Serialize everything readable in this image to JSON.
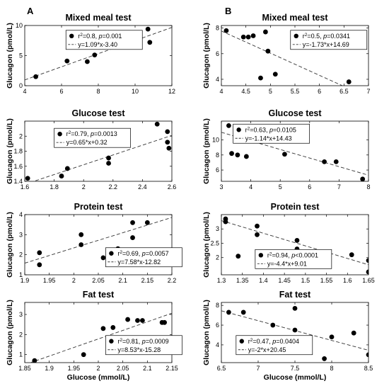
{
  "panel_labels": [
    "A",
    "B"
  ],
  "chart_data": [
    {
      "type": "scatter",
      "panel": "A",
      "title": "Mixed meal test",
      "xlabel": "",
      "ylabel": "Glucagon (pmol/L)",
      "xlim": [
        4,
        12
      ],
      "ylim": [
        0,
        10
      ],
      "xticks": [
        "4",
        "6",
        "8",
        "10",
        "12"
      ],
      "xtick_values": [
        4,
        6,
        8,
        10,
        12
      ],
      "yticks": [
        "0",
        "5",
        "10"
      ],
      "ytick_values": [
        0,
        5,
        10
      ],
      "points": {
        "x": [
          4.6,
          6.3,
          7.4,
          7.8,
          8.8,
          9.2,
          9.9,
          10.7,
          10.8
        ],
        "y": [
          1.5,
          4.1,
          4.0,
          5.1,
          8.8,
          7.4,
          7.6,
          9.4,
          7.2
        ]
      },
      "fit": {
        "slope": 1.09,
        "intercept": -3.4
      },
      "legend": {
        "stat": "r²=0.8, p=0.001",
        "r2": "0.8",
        "p": "0.001",
        "eq": "y=1.09*x-3.40"
      }
    },
    {
      "type": "scatter",
      "panel": "B",
      "title": "Mixed meal test",
      "xlabel": "",
      "ylabel": "Glucagon (pmol/L)",
      "xlim": [
        4,
        7
      ],
      "ylim": [
        3.5,
        8.2
      ],
      "xticks": [
        "4",
        "4.5",
        "5",
        "5.5",
        "6",
        "6.5",
        "7"
      ],
      "xtick_values": [
        4,
        4.5,
        5,
        5.5,
        6,
        6.5,
        7
      ],
      "yticks": [
        "4",
        "6",
        "8"
      ],
      "ytick_values": [
        4,
        6,
        8
      ],
      "points": {
        "x": [
          4.1,
          4.45,
          4.55,
          4.65,
          4.8,
          4.9,
          4.95,
          5.1,
          6.6
        ],
        "y": [
          7.8,
          7.3,
          7.3,
          7.4,
          4.1,
          7.7,
          6.2,
          4.4,
          3.8
        ]
      },
      "fit": {
        "slope": -1.73,
        "intercept": 14.69
      },
      "legend": {
        "stat": "r²=0.5, p=0.0341",
        "r2": "0.5",
        "p": "0.0341",
        "eq": "y=-1.73*x+14.69"
      }
    },
    {
      "type": "scatter",
      "panel": "A",
      "title": "Glucose test",
      "xlabel": "",
      "ylabel": "Glucagon (pmol/L)",
      "xlim": [
        1.6,
        2.6
      ],
      "ylim": [
        1.4,
        2.2
      ],
      "xticks": [
        "1.6",
        "1.8",
        "2",
        "2.2",
        "2.4",
        "2.6"
      ],
      "xtick_values": [
        1.6,
        1.8,
        2.0,
        2.2,
        2.4,
        2.6
      ],
      "yticks": [
        "1.4",
        "1.6",
        "1.8",
        "2"
      ],
      "ytick_values": [
        1.4,
        1.6,
        1.8,
        2.0
      ],
      "points": {
        "x": [
          1.62,
          1.85,
          1.89,
          2.17,
          2.17,
          2.5,
          2.57,
          2.57,
          2.58
        ],
        "y": [
          1.44,
          1.47,
          1.57,
          1.64,
          1.71,
          2.16,
          2.06,
          1.92,
          1.84
        ]
      },
      "fit": {
        "slope": 0.65,
        "intercept": 0.32
      },
      "legend": {
        "stat": "r²=0.79, p=0.0013",
        "r2": "0.79",
        "p": "0.0013",
        "eq": "y=0.65*x+0.32"
      }
    },
    {
      "type": "scatter",
      "panel": "B",
      "title": "Glucose test",
      "xlabel": "",
      "ylabel": "Glucagon (pmol/L)",
      "xlim": [
        3,
        8
      ],
      "ylim": [
        4.5,
        12.5
      ],
      "xticks": [
        "3",
        "4",
        "5",
        "6",
        "7",
        "8"
      ],
      "xtick_values": [
        3,
        4,
        5,
        6,
        7,
        8
      ],
      "yticks": [
        "6",
        "8",
        "10"
      ],
      "ytick_values": [
        6,
        8,
        10
      ],
      "points": {
        "x": [
          3.25,
          3.35,
          3.55,
          3.85,
          4.3,
          4.75,
          5.15,
          6.5,
          6.9,
          7.8
        ],
        "y": [
          11.9,
          8.2,
          8.0,
          7.8,
          11.1,
          10.7,
          8.1,
          7.1,
          7.1,
          4.8
        ]
      },
      "fit": {
        "slope": -1.14,
        "intercept": 14.43
      },
      "legend": {
        "stat": "r²=0.63, p=0.0105",
        "r2": "0.63",
        "p": "0.0105",
        "eq": "y=-1.14*x+14.43"
      }
    },
    {
      "type": "scatter",
      "panel": "A",
      "title": "Protein test",
      "xlabel": "",
      "ylabel": "Glucagon (pmol/L)",
      "xlim": [
        1.9,
        2.2
      ],
      "ylim": [
        1,
        4
      ],
      "xticks": [
        "1.9",
        "1.95",
        "2",
        "2.05",
        "2.1",
        "2.15",
        "2.2"
      ],
      "xtick_values": [
        1.9,
        1.95,
        2.0,
        2.05,
        2.1,
        2.15,
        2.2
      ],
      "yticks": [
        "1",
        "2",
        "3",
        "4"
      ],
      "ytick_values": [
        1,
        2,
        3,
        4
      ],
      "points": {
        "x": [
          1.93,
          1.93,
          2.015,
          2.015,
          2.06,
          2.09,
          2.12,
          2.12,
          2.15
        ],
        "y": [
          2.1,
          1.5,
          3.0,
          2.5,
          1.85,
          2.3,
          3.6,
          2.85,
          3.6
        ]
      },
      "fit": {
        "slope": 7.58,
        "intercept": -12.82
      },
      "legend": {
        "stat": "r²=0.69, p=0.0057",
        "r2": "0.69",
        "p": "0.0057",
        "eq": "y=7.58*x-12.82"
      }
    },
    {
      "type": "scatter",
      "panel": "B",
      "title": "Protein test",
      "xlabel": "",
      "ylabel": "Glucagon (pmol/L)",
      "xlim": [
        1.3,
        1.65
      ],
      "ylim": [
        1.4,
        3.5
      ],
      "xticks": [
        "1.3",
        "1.35",
        "1.4",
        "1.45",
        "1.5",
        "1.55",
        "1.6",
        "1.65"
      ],
      "xtick_values": [
        1.3,
        1.35,
        1.4,
        1.45,
        1.5,
        1.55,
        1.6,
        1.65
      ],
      "yticks": [
        "2",
        "2.5",
        "3"
      ],
      "ytick_values": [
        2,
        2.5,
        3
      ],
      "points": {
        "x": [
          1.31,
          1.31,
          1.34,
          1.385,
          1.385,
          1.48,
          1.48,
          1.61,
          1.65,
          1.65
        ],
        "y": [
          3.35,
          3.25,
          2.05,
          3.1,
          2.8,
          2.6,
          2.3,
          2.1,
          1.9,
          1.5
        ]
      },
      "fit": {
        "slope": -4.4,
        "intercept": 9.01
      },
      "legend": {
        "stat": "r²=0.94, p<0.0001",
        "r2": "0.94",
        "p": "<0.0001",
        "eq": "y=-4.4*x+9.01"
      }
    },
    {
      "type": "scatter",
      "panel": "A",
      "title": "Fat test",
      "xlabel": "Glucose (mmol/L)",
      "ylabel": "Glucagon (pmol/L)",
      "xlim": [
        1.85,
        2.15
      ],
      "ylim": [
        0.6,
        3.6
      ],
      "xticks": [
        "1.85",
        "1.9",
        "1.95",
        "2",
        "2.05",
        "2.1",
        "2.15"
      ],
      "xtick_values": [
        1.85,
        1.9,
        1.95,
        2.0,
        2.05,
        2.1,
        2.15
      ],
      "yticks": [
        "1",
        "2",
        "3"
      ],
      "ytick_values": [
        1,
        2,
        3
      ],
      "points": {
        "x": [
          1.87,
          1.97,
          2.01,
          2.03,
          2.06,
          2.08,
          2.09,
          2.13,
          2.135
        ],
        "y": [
          0.7,
          1.0,
          2.3,
          2.35,
          2.75,
          2.7,
          2.7,
          2.6,
          2.6
        ]
      },
      "fit": {
        "slope": 8.53,
        "intercept": -15.28
      },
      "legend": {
        "stat": "r²=0.81, p=0.0009",
        "r2": "0.81",
        "p": "0.0009",
        "eq": "y=8.53*x-15.28"
      }
    },
    {
      "type": "scatter",
      "panel": "B",
      "title": "Fat test",
      "xlabel": "Glucose (mmol/L)",
      "ylabel": "Glucagon (pmol/L)",
      "xlim": [
        6.5,
        8.5
      ],
      "ylim": [
        2.2,
        8.3
      ],
      "xticks": [
        "6.5",
        "7",
        "7.5",
        "8",
        "8.5"
      ],
      "xtick_values": [
        6.5,
        7.0,
        7.5,
        8.0,
        8.5
      ],
      "yticks": [
        "4",
        "6",
        "8"
      ],
      "ytick_values": [
        4,
        6,
        8
      ],
      "points": {
        "x": [
          6.6,
          6.8,
          7.2,
          7.3,
          7.5,
          7.5,
          7.9,
          8.0,
          8.3,
          8.5
        ],
        "y": [
          7.3,
          7.3,
          6.0,
          4.3,
          7.7,
          5.5,
          2.6,
          4.8,
          5.2,
          3.0
        ]
      },
      "fit": {
        "slope": -2,
        "intercept": 20.45
      },
      "legend": {
        "stat": "r²=0.47, p=0.0404",
        "r2": "0.47",
        "p": "0.0404",
        "eq": "y=-2*x+20.45"
      }
    }
  ]
}
